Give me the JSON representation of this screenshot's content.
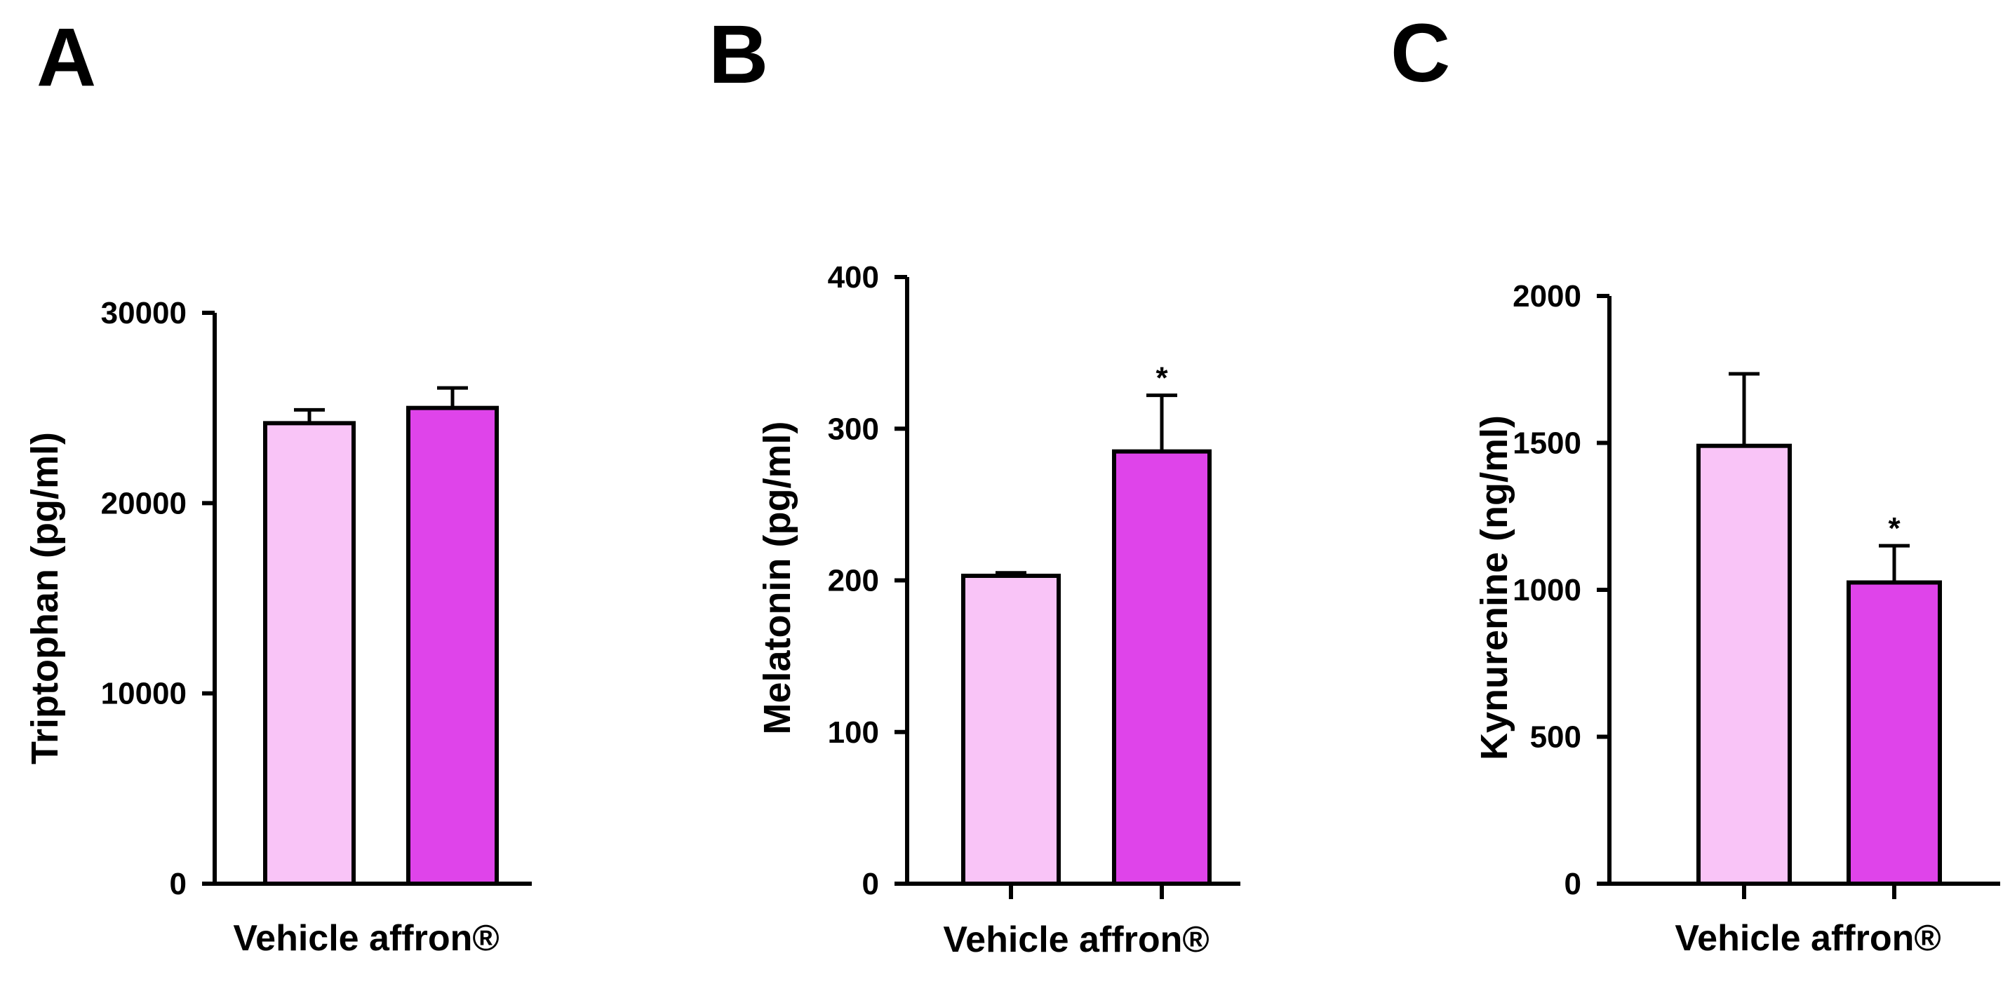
{
  "colors": {
    "vehicle": "#f9c4f7",
    "affron": "#df44ea",
    "stroke": "#000000"
  },
  "chart_data": [
    {
      "type": "bar",
      "panel": "A",
      "ylabel": "Triptophan (pg/ml)",
      "xlabel": "Vehicle affron®",
      "categories": [
        "Vehicle",
        "affron®"
      ],
      "values": [
        24200,
        25000
      ],
      "errors": [
        700,
        1050
      ],
      "significance": [
        "",
        ""
      ],
      "ylim": [
        0,
        30000
      ],
      "yticks": [
        0,
        10000,
        20000,
        30000
      ],
      "ytick_labels": [
        "0",
        "10000",
        "20000",
        "30000"
      ]
    },
    {
      "type": "bar",
      "panel": "B",
      "ylabel": "Melatonin (pg/ml)",
      "xlabel": "Vehicle affron®",
      "categories": [
        "Vehicle",
        "affron®"
      ],
      "values": [
        203,
        285
      ],
      "errors": [
        2,
        37
      ],
      "significance": [
        "",
        "*"
      ],
      "ylim": [
        0,
        400
      ],
      "yticks": [
        0,
        100,
        200,
        300,
        400
      ],
      "ytick_labels": [
        "0",
        "100",
        "200",
        "300",
        "400"
      ]
    },
    {
      "type": "bar",
      "panel": "C",
      "ylabel": "Kynurenine (ng/ml)",
      "xlabel": "Vehicle affron®",
      "categories": [
        "Vehicle",
        "affron®"
      ],
      "values": [
        1490,
        1025
      ],
      "errors": [
        245,
        125
      ],
      "significance": [
        "",
        "*"
      ],
      "ylim": [
        0,
        2000
      ],
      "yticks": [
        0,
        500,
        1000,
        1500,
        2000
      ],
      "ytick_labels": [
        "0",
        "500",
        "1000",
        "1500",
        "2000"
      ]
    }
  ]
}
